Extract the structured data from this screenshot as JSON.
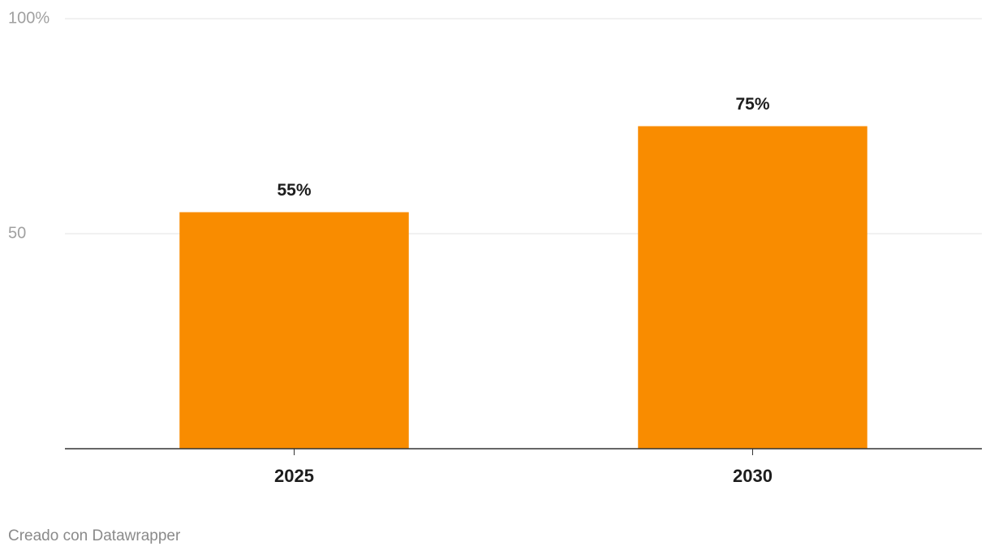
{
  "chart_data": {
    "type": "bar",
    "categories": [
      "2025",
      "2030"
    ],
    "values": [
      55,
      75
    ],
    "value_labels": [
      "55%",
      "75%"
    ],
    "color": "#f98c00",
    "ylim": [
      0,
      100
    ],
    "yticks": [
      50,
      {
        "value": 100,
        "label": "100%"
      }
    ],
    "grid": true,
    "credit": "Creado con Datawrapper"
  }
}
